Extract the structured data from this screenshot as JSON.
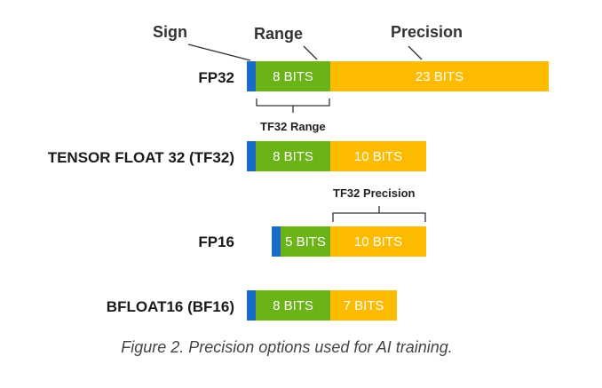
{
  "headers": {
    "sign": "Sign",
    "range": "Range",
    "precision": "Precision"
  },
  "formats": [
    {
      "name": "FP32",
      "range_label": "8 BITS",
      "precision_label": "23 BITS"
    },
    {
      "name": "TENSOR FLOAT 32 (TF32)",
      "range_label": "8 BITS",
      "precision_label": "10 BITS"
    },
    {
      "name": "FP16",
      "range_label": "5 BITS",
      "precision_label": "10 BITS"
    },
    {
      "name": "BFLOAT16 (BF16)",
      "range_label": "8 BITS",
      "precision_label": "7 BITS"
    }
  ],
  "annotations": {
    "tf32_range": "TF32 Range",
    "tf32_precision": "TF32 Precision"
  },
  "caption": "Figure 2. Precision options used for AI training.",
  "colors": {
    "sign": "#1a6bc7",
    "range": "#6bb417",
    "precision": "#fdbb00"
  }
}
